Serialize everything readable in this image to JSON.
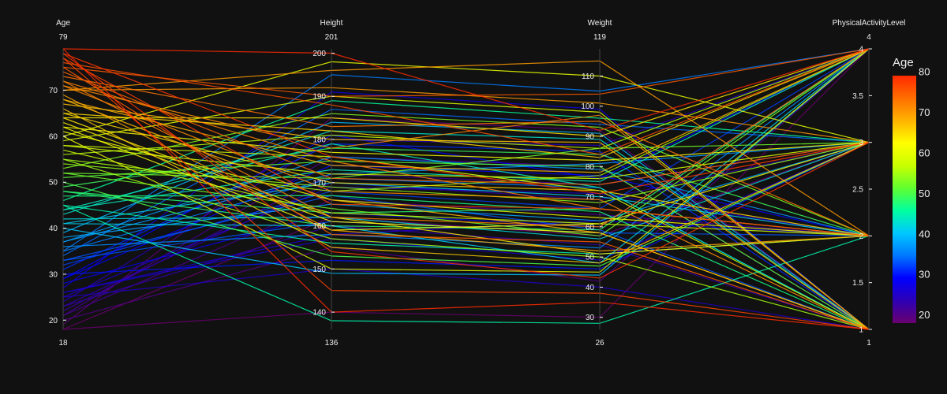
{
  "chart_data": {
    "type": "parallel_coordinates",
    "background": "#111111",
    "color_by": "Age",
    "colorscale": [
      "#6a006f",
      "#2d00b4",
      "#0000ff",
      "#0078ff",
      "#00c8ff",
      "#00ffa0",
      "#60ff30",
      "#c8ff00",
      "#ffff00",
      "#ffb400",
      "#ff6e00",
      "#ff2a00"
    ],
    "color_range": [
      18,
      79
    ],
    "colorbar": {
      "title": "Age",
      "ticks": [
        20,
        30,
        40,
        50,
        60,
        70,
        80
      ]
    },
    "dimensions": [
      {
        "name": "Age",
        "range": [
          18,
          79
        ],
        "min_label": "18",
        "max_label": "79",
        "ticks": [
          20,
          30,
          40,
          50,
          60,
          70
        ]
      },
      {
        "name": "Height",
        "range": [
          136,
          201
        ],
        "min_label": "136",
        "max_label": "201",
        "ticks": [
          140,
          150,
          160,
          170,
          180,
          190,
          200
        ]
      },
      {
        "name": "Weight",
        "range": [
          26,
          119
        ],
        "min_label": "26",
        "max_label": "119",
        "ticks": [
          30,
          40,
          50,
          60,
          70,
          80,
          90,
          100,
          110
        ]
      },
      {
        "name": "PhysicalActivityLevel",
        "range": [
          1,
          4
        ],
        "min_label": "1",
        "max_label": "4",
        "ticks": [
          1,
          1.5,
          2,
          2.5,
          3,
          3.5,
          4
        ],
        "tick_labels": [
          "1",
          "1.5",
          "2",
          "2.5",
          "3",
          "3.5",
          "4"
        ]
      }
    ],
    "records": [
      [
        79,
        200,
        92,
        4
      ],
      [
        78,
        176,
        71,
        3
      ],
      [
        77,
        165,
        66,
        2
      ],
      [
        76,
        188,
        84,
        4
      ],
      [
        75,
        158,
        55,
        1
      ],
      [
        74,
        171,
        74,
        3
      ],
      [
        73,
        183,
        95,
        2
      ],
      [
        72,
        162,
        60,
        4
      ],
      [
        71,
        168,
        69,
        1
      ],
      [
        70,
        192,
        101,
        3
      ],
      [
        69,
        159,
        52,
        2
      ],
      [
        68,
        174,
        78,
        4
      ],
      [
        67,
        180,
        88,
        1
      ],
      [
        66,
        155,
        48,
        3
      ],
      [
        65,
        170,
        72,
        2
      ],
      [
        64,
        185,
        90,
        4
      ],
      [
        63,
        161,
        58,
        1
      ],
      [
        62,
        177,
        82,
        3
      ],
      [
        61,
        166,
        63,
        2
      ],
      [
        60,
        150,
        45,
        4
      ],
      [
        59,
        190,
        98,
        1
      ],
      [
        58,
        172,
        76,
        3
      ],
      [
        57,
        163,
        61,
        2
      ],
      [
        56,
        181,
        86,
        4
      ],
      [
        55,
        157,
        50,
        1
      ],
      [
        54,
        169,
        68,
        3
      ],
      [
        53,
        186,
        93,
        2
      ],
      [
        52,
        164,
        57,
        4
      ],
      [
        51,
        175,
        80,
        1
      ],
      [
        50,
        153,
        47,
        3
      ],
      [
        49,
        178,
        84,
        2
      ],
      [
        48,
        160,
        59,
        4
      ],
      [
        47,
        167,
        65,
        1
      ],
      [
        46,
        189,
        96,
        3
      ],
      [
        45,
        156,
        51,
        2
      ],
      [
        44,
        173,
        75,
        4
      ],
      [
        43,
        182,
        89,
        1
      ],
      [
        42,
        162,
        56,
        3
      ],
      [
        41,
        170,
        70,
        2
      ],
      [
        40,
        149,
        44,
        4
      ],
      [
        39,
        184,
        91,
        1
      ],
      [
        38,
        165,
        62,
        3
      ],
      [
        37,
        176,
        79,
        2
      ],
      [
        36,
        158,
        53,
        4
      ],
      [
        35,
        171,
        73,
        1
      ],
      [
        34,
        187,
        94,
        3
      ],
      [
        33,
        161,
        58,
        2
      ],
      [
        32,
        168,
        66,
        4
      ],
      [
        31,
        179,
        85,
        1
      ],
      [
        30,
        152,
        46,
        3
      ],
      [
        29,
        174,
        77,
        2
      ],
      [
        28,
        163,
        60,
        4
      ],
      [
        27,
        191,
        99,
        1
      ],
      [
        26,
        157,
        49,
        3
      ],
      [
        25,
        169,
        71,
        2
      ],
      [
        24,
        180,
        87,
        4
      ],
      [
        23,
        160,
        54,
        1
      ],
      [
        22,
        172,
        74,
        3
      ],
      [
        21,
        166,
        64,
        2
      ],
      [
        20,
        155,
        42,
        4
      ],
      [
        19,
        185,
        92,
        1
      ],
      [
        18,
        162,
        57,
        3
      ],
      [
        79,
        140,
        35,
        1
      ],
      [
        18,
        140,
        30,
        4
      ],
      [
        70,
        196,
        115,
        2
      ],
      [
        25,
        150,
        40,
        1
      ],
      [
        60,
        198,
        110,
        3
      ],
      [
        45,
        138,
        28,
        2
      ],
      [
        35,
        195,
        105,
        4
      ],
      [
        77,
        145,
        38,
        1
      ],
      [
        75,
        190,
        104,
        4
      ],
      [
        72,
        175,
        66,
        2
      ],
      [
        68,
        166,
        58,
        1
      ],
      [
        65,
        182,
        83,
        4
      ],
      [
        62,
        159,
        61,
        3
      ],
      [
        58,
        176,
        72,
        1
      ],
      [
        55,
        168,
        77,
        4
      ],
      [
        52,
        171,
        86,
        3
      ],
      [
        48,
        163,
        66,
        2
      ],
      [
        44,
        179,
        73,
        1
      ],
      [
        41,
        160,
        48,
        4
      ],
      [
        37,
        172,
        81,
        3
      ],
      [
        33,
        167,
        59,
        1
      ],
      [
        29,
        181,
        76,
        4
      ],
      [
        26,
        158,
        62,
        2
      ],
      [
        23,
        170,
        69,
        3
      ],
      [
        21,
        176,
        80,
        1
      ],
      [
        64,
        162,
        51,
        2
      ],
      [
        71,
        178,
        97,
        1
      ],
      [
        78,
        154,
        43,
        3
      ]
    ]
  }
}
